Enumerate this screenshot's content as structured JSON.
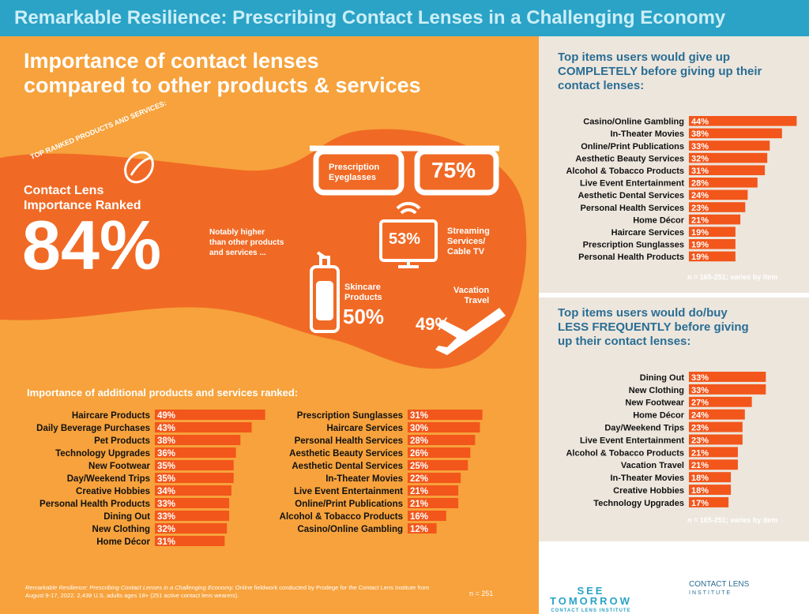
{
  "header": {
    "title": "Remarkable Resilience: Prescribing Contact Lenses in a Challenging Economy"
  },
  "headline": {
    "line1": "Importance of contact lenses",
    "line2": "compared to other products & services"
  },
  "hero": {
    "arc_label": "TOP RANKED PRODUCTS AND SERVICES:",
    "rank_line1": "Contact Lens",
    "rank_line2": "Importance Ranked",
    "big_pct": "84%",
    "note_line1": "Notably higher",
    "note_line2": "than other products",
    "note_line3": "and services ...",
    "eyeglasses_line1": "Prescription",
    "eyeglasses_line2": "Eyeglasses",
    "eyeglasses_pct": "75%",
    "streaming_line1": "Streaming",
    "streaming_line2": "Services/",
    "streaming_line3": "Cable TV",
    "streaming_pct": "53%",
    "skincare_line1": "Skincare",
    "skincare_line2": "Products",
    "skincare_pct": "50%",
    "vacation_line1": "Vacation",
    "vacation_line2": "Travel",
    "vacation_pct": "49%"
  },
  "additional_title": "Importance of additional products and services ranked:",
  "right_top_title": {
    "line1": "Top items users would give up",
    "line2": "COMPLETELY before giving up their",
    "line3": "contact lenses:"
  },
  "right_bottom_title": {
    "line1": "Top items users would do/buy",
    "line2": "LESS FREQUENTLY before giving",
    "line3": "up their contact lenses:"
  },
  "right_note": "n = 165-251; varies by item",
  "footer": {
    "source_italic": "Remarkable Resilience: Prescribing Contact Lenses in a Challenging Economy.",
    "source_rest": " Online fieldwork conducted by Prodege for the Contact Lens Institute from August 9-17, 2022. 2,439 U.S. adults ages 18+ (251 active contact lens wearers).",
    "n": "n = 251",
    "logo1_line1": "SEE",
    "logo1_line2": "TOMORROW",
    "logo1_line3": "CONTACT LENS INSTITUTE",
    "logo2_line1": "CONTACT LENS",
    "logo2_line2": "INSTITUTE"
  },
  "colors": {
    "bar": "#f2561b",
    "orange_bg": "#f7a23c",
    "blob": "#f06a25",
    "teal": "#2aa3c7",
    "navy": "#2a6e94",
    "beige": "#ede6dd"
  },
  "chart_data": [
    {
      "type": "bar",
      "orientation": "horizontal",
      "title": "Importance of additional products and services ranked:",
      "categories": [
        "Haircare Products",
        "Daily Beverage Purchases",
        "Pet Products",
        "Technology Upgrades",
        "New Footwear",
        "Day/Weekend Trips",
        "Creative Hobbies",
        "Personal Health Products",
        "Dining Out",
        "New Clothing",
        "Home Décor"
      ],
      "values": [
        49,
        43,
        38,
        36,
        35,
        35,
        34,
        33,
        33,
        32,
        31
      ],
      "labels": [
        "49%",
        "43%",
        "38%",
        "36%",
        "35%",
        "35%",
        "34%",
        "33%",
        "33%",
        "32%",
        "31%"
      ]
    },
    {
      "type": "bar",
      "orientation": "horizontal",
      "categories": [
        "Prescription Sunglasses",
        "Haircare Services",
        "Personal Health Services",
        "Aesthetic Beauty Services",
        "Aesthetic Dental Services",
        "In-Theater Movies",
        "Live Event Entertainment",
        "Online/Print Publications",
        "Alcohol & Tobacco Products",
        "Casino/Online Gambling"
      ],
      "values": [
        31,
        30,
        28,
        26,
        25,
        22,
        21,
        21,
        16,
        12
      ],
      "labels": [
        "31%",
        "30%",
        "28%",
        "26%",
        "25%",
        "22%",
        "21%",
        "21%",
        "16%",
        "12%"
      ]
    },
    {
      "type": "bar",
      "orientation": "horizontal",
      "title": "Top items users would give up COMPLETELY before giving up their contact lenses:",
      "categories": [
        "Casino/Online Gambling",
        "In-Theater Movies",
        "Online/Print Publications",
        "Aesthetic Beauty Services",
        "Alcohol & Tobacco Products",
        "Live Event Entertainment",
        "Aesthetic Dental Services",
        "Personal Health Services",
        "Home Décor",
        "Haircare Services",
        "Prescription Sunglasses",
        "Personal Health Products"
      ],
      "values": [
        44,
        38,
        33,
        32,
        31,
        28,
        24,
        23,
        21,
        19,
        19,
        19
      ],
      "labels": [
        "44%",
        "38%",
        "33%",
        "32%",
        "31%",
        "28%",
        "24%",
        "23%",
        "21%",
        "19%",
        "19%",
        "19%"
      ]
    },
    {
      "type": "bar",
      "orientation": "horizontal",
      "title": "Top items users would do/buy LESS FREQUENTLY before giving up their contact lenses:",
      "categories": [
        "Dining Out",
        "New Clothing",
        "New Footwear",
        "Home Décor",
        "Day/Weekend Trips",
        "Live Event Entertainment",
        "Alcohol & Tobacco Products",
        "Vacation Travel",
        "In-Theater Movies",
        "Creative Hobbies",
        "Technology Upgrades"
      ],
      "values": [
        33,
        33,
        27,
        24,
        23,
        23,
        21,
        21,
        18,
        18,
        17
      ],
      "labels": [
        "33%",
        "33%",
        "27%",
        "24%",
        "23%",
        "23%",
        "21%",
        "21%",
        "18%",
        "18%",
        "17%"
      ]
    }
  ]
}
